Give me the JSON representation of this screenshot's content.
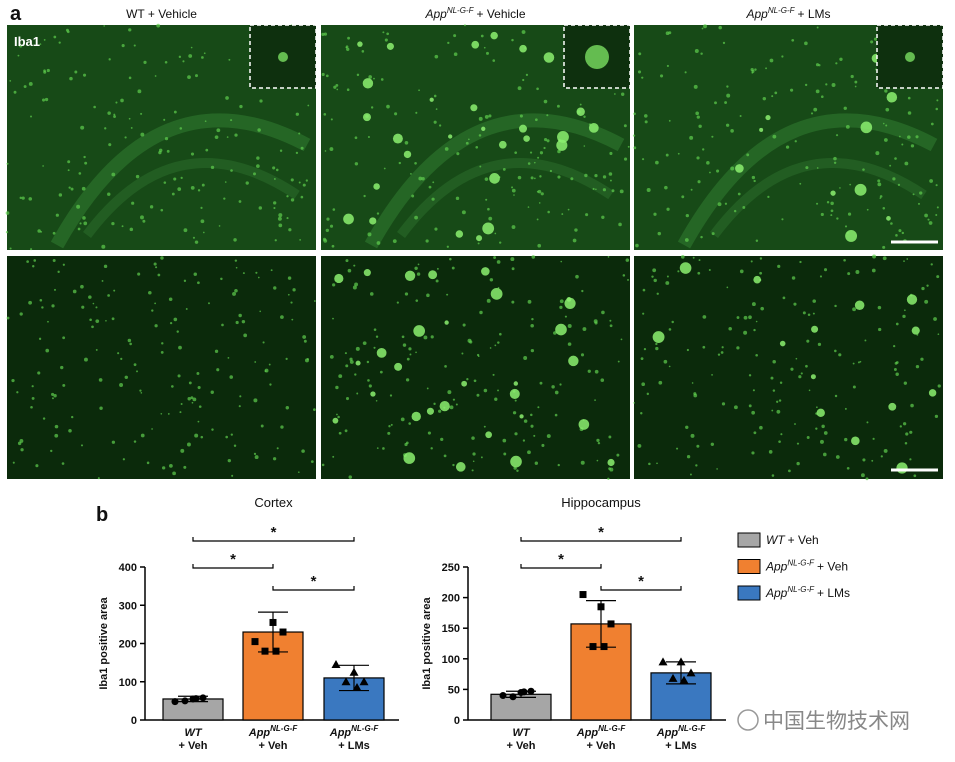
{
  "panel_a": {
    "label": "a",
    "titles": [
      {
        "main": "WT + Vehicle"
      },
      {
        "main": "App",
        "sup": "NL-G-F",
        "suffix": "+ Vehicle"
      },
      {
        "main": "App",
        "sup": "NL-G-F",
        "suffix": "+ LMs"
      }
    ],
    "stain": "Iba1"
  },
  "panel_b": {
    "label": "b"
  },
  "legend": [
    {
      "main": "WT",
      "suffix": "+ Veh",
      "color": "#a6a6a6"
    },
    {
      "main": "App",
      "sup": "NL-G-F",
      "suffix": "+ Veh",
      "color": "#f08030"
    },
    {
      "main": "App",
      "sup": "NL-G-F",
      "suffix": "+ LMs",
      "color": "#3a78c0"
    }
  ],
  "watermark": "中国生物技术网",
  "chart_data": [
    {
      "type": "bar",
      "title": "Cortex",
      "y_label": "Iba1 positive area",
      "categories": [
        {
          "main": "WT",
          "line2": "+ Veh"
        },
        {
          "main": "App",
          "sup": "NL-G-F",
          "line2": "+ Veh"
        },
        {
          "main": "App",
          "sup": "NL-G-F",
          "line2": "+ LMs"
        }
      ],
      "colors": [
        "#a6a6a6",
        "#f08030",
        "#3a78c0"
      ],
      "markers": [
        "circle",
        "square",
        "triangle"
      ],
      "values": [
        55,
        230,
        110
      ],
      "errors": [
        7,
        52,
        33
      ],
      "points": [
        [
          48,
          55,
          58,
          56,
          50
        ],
        [
          205,
          255,
          230,
          180,
          180
        ],
        [
          145,
          125,
          100,
          85,
          100
        ]
      ],
      "ylim": [
        0,
        400
      ],
      "yticks": [
        0,
        100,
        200,
        300,
        400
      ],
      "comparisons": [
        {
          "pair": [
            0,
            2
          ],
          "label": "*"
        },
        {
          "pair": [
            0,
            1
          ],
          "label": "*"
        },
        {
          "pair": [
            1,
            2
          ],
          "label": "*"
        }
      ]
    },
    {
      "type": "bar",
      "title": "Hippocampus",
      "y_label": "Iba1 positive area",
      "categories": [
        {
          "main": "WT",
          "line2": "+ Veh"
        },
        {
          "main": "App",
          "sup": "NL-G-F",
          "line2": "+ Veh"
        },
        {
          "main": "App",
          "sup": "NL-G-F",
          "line2": "+ LMs"
        }
      ],
      "colors": [
        "#a6a6a6",
        "#f08030",
        "#3a78c0"
      ],
      "markers": [
        "circle",
        "square",
        "triangle"
      ],
      "values": [
        42,
        157,
        77
      ],
      "errors": [
        5,
        38,
        18
      ],
      "points": [
        [
          40,
          45,
          47,
          46,
          38
        ],
        [
          205,
          185,
          157,
          120,
          120
        ],
        [
          95,
          95,
          77,
          65,
          68
        ]
      ],
      "ylim": [
        0,
        250
      ],
      "yticks": [
        0,
        50,
        100,
        150,
        200,
        250
      ],
      "comparisons": [
        {
          "pair": [
            0,
            2
          ],
          "label": "*"
        },
        {
          "pair": [
            0,
            1
          ],
          "label": "*"
        },
        {
          "pair": [
            1,
            2
          ],
          "label": "*"
        }
      ]
    }
  ]
}
